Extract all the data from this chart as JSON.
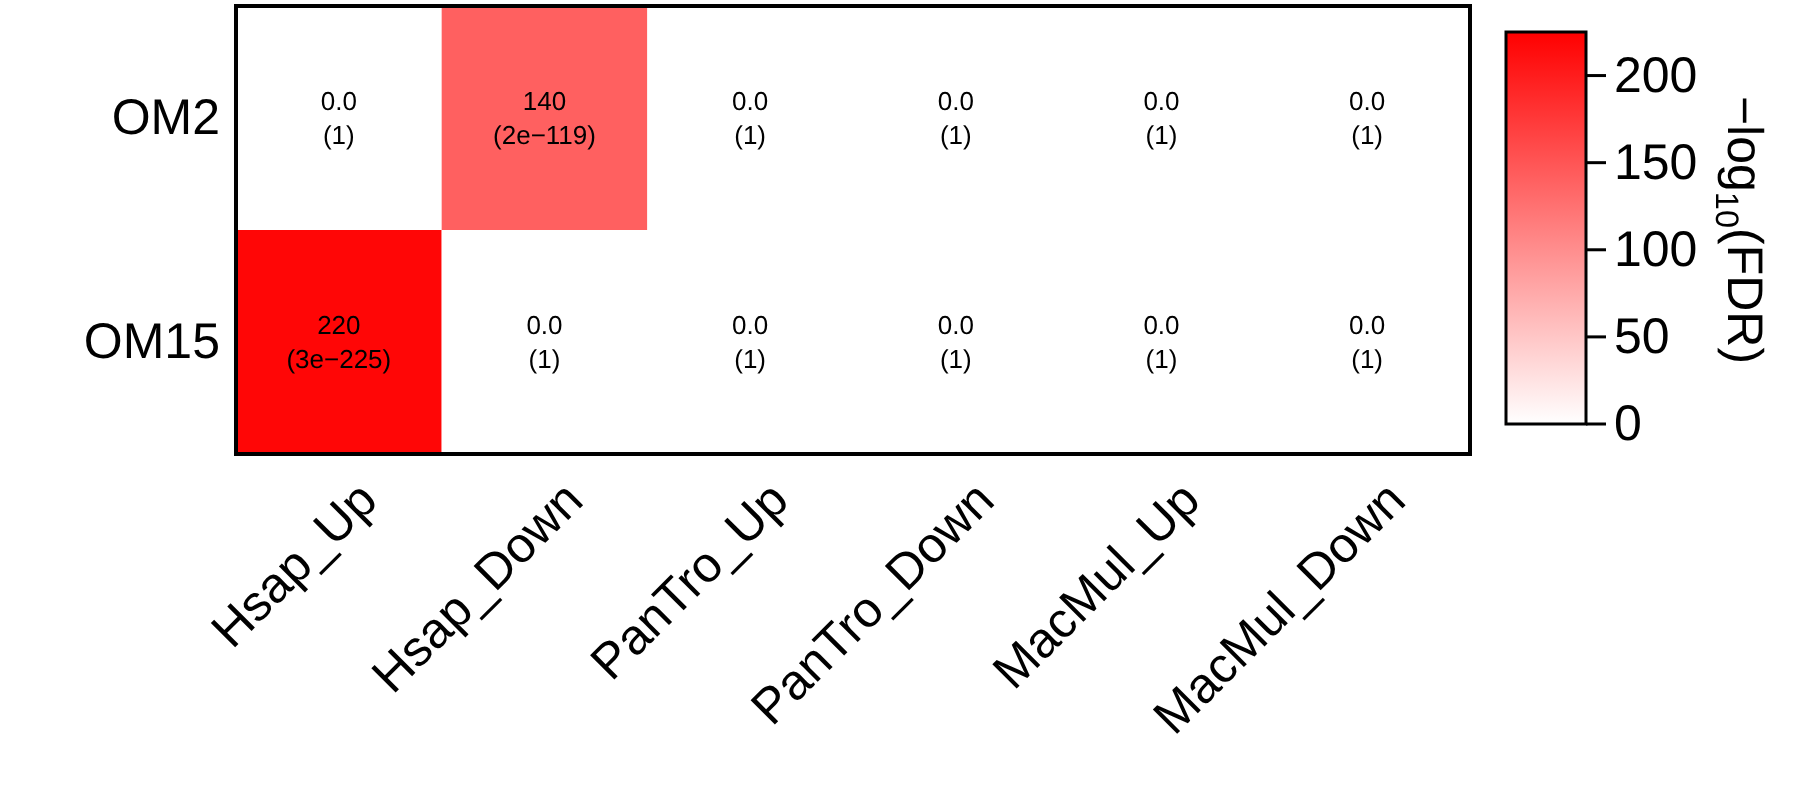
{
  "chart_data": {
    "type": "heatmap",
    "categories": [
      "Hsap_Up",
      "Hsap_Down",
      "PanTro_Up",
      "PanTro_Down",
      "MacMul_Up",
      "MacMul_Down"
    ],
    "y_categories": [
      "OM2",
      "OM15"
    ],
    "cells": [
      [
        0.0,
        140,
        0.0,
        0.0,
        0.0,
        0.0
      ],
      [
        220,
        0.0,
        0.0,
        0.0,
        0.0,
        0.0
      ]
    ],
    "cell_labels": [
      [
        "0.0\n(1)",
        "140\n(2e−119)",
        "0.0\n(1)",
        "0.0\n(1)",
        "0.0\n(1)",
        "0.0\n(1)"
      ],
      [
        "220\n(3e−225)",
        "0.0\n(1)",
        "0.0\n(1)",
        "0.0\n(1)",
        "0.0\n(1)",
        "0.0\n(1)"
      ]
    ],
    "color": "#ff0000",
    "clim": [
      0,
      225
    ],
    "cticks": [
      0,
      50,
      100,
      150,
      200
    ],
    "clabel": "−log$_{10}$(FDR)"
  }
}
